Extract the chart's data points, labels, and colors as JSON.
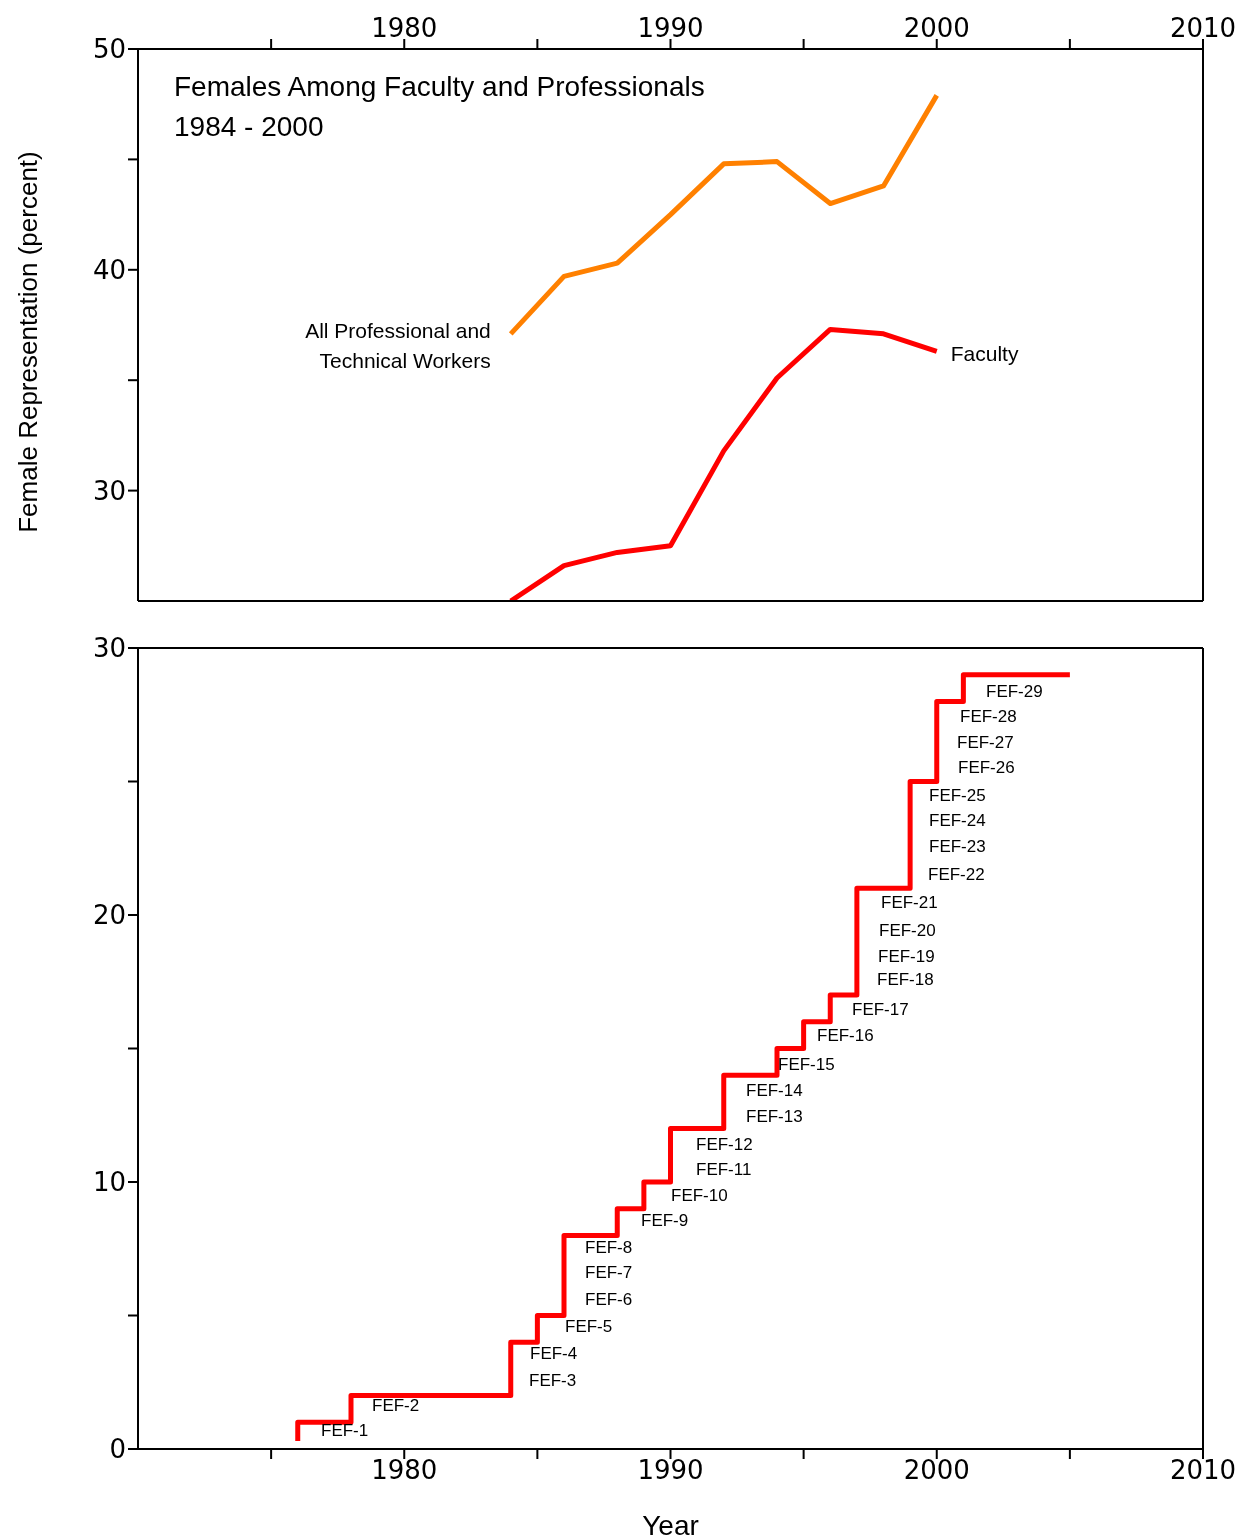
{
  "chart_data": [
    {
      "type": "line",
      "title": "Females Among Faculty and Professionals",
      "subtitle": "1984 - 2000",
      "ylabel": "Female Representation (percent)",
      "xlim": [
        1970,
        2010
      ],
      "xticks": [
        {
          "value": 1975,
          "label": null
        },
        1980,
        {
          "value": 1985,
          "label": null
        },
        1990,
        {
          "value": 1995,
          "label": null
        },
        2000,
        {
          "value": 2005,
          "label": null
        },
        2010
      ],
      "ylim": [
        25,
        50
      ],
      "yticks": [
        30,
        {
          "value": 35,
          "label": null
        },
        40,
        {
          "value": 45,
          "label": null
        },
        50
      ],
      "series": [
        {
          "name": "All Professional and Technical Workers",
          "color": "#ff8000",
          "x": [
            1984,
            1986,
            1988,
            1990,
            1992,
            1994,
            1996,
            1998,
            2000
          ],
          "values": [
            37.1,
            39.7,
            40.3,
            42.5,
            44.8,
            44.9,
            43.0,
            43.8,
            47.9
          ]
        },
        {
          "name": "Faculty",
          "color": "#ff0000",
          "x": [
            1984,
            1986,
            1988,
            1990,
            1992,
            1994,
            1996,
            1998,
            2000
          ],
          "values": [
            25.0,
            26.6,
            27.2,
            27.5,
            31.8,
            35.1,
            37.3,
            37.1,
            36.3
          ]
        }
      ]
    },
    {
      "type": "step",
      "xlabel": "Year",
      "xlim": [
        1970,
        2010
      ],
      "xticks": [
        {
          "value": 1975,
          "label": null
        },
        1980,
        {
          "value": 1985,
          "label": null
        },
        1990,
        {
          "value": 1995,
          "label": null
        },
        2000,
        {
          "value": 2005,
          "label": null
        },
        2010
      ],
      "ylim": [
        0,
        30
      ],
      "yticks": [
        0,
        {
          "value": 5,
          "label": null
        },
        10,
        {
          "value": 15,
          "label": null
        },
        20,
        {
          "value": 25,
          "label": null
        },
        30
      ],
      "series": [
        {
          "color": "#ff0000",
          "x": [
            1976,
            1976,
            1978,
            1984,
            1985,
            1986,
            1988,
            1989,
            1990,
            1992,
            1994,
            1995,
            1996,
            1997,
            1999,
            2000,
            2001,
            2005
          ],
          "values": [
            0.3,
            1,
            2,
            4,
            5,
            8,
            9,
            10,
            12,
            14,
            15,
            16,
            17,
            21,
            25,
            28,
            29,
            29
          ]
        }
      ],
      "annotations": [
        "FEF-1",
        "FEF-2",
        "FEF-3",
        "FEF-4",
        "FEF-5",
        "FEF-6",
        "FEF-7",
        "FEF-8",
        "FEF-9",
        "FEF-10",
        "FEF-11",
        "FEF-12",
        "FEF-13",
        "FEF-14",
        "FEF-15",
        "FEF-16",
        "FEF-17",
        "FEF-18",
        "FEF-19",
        "FEF-20",
        "FEF-21",
        "FEF-22",
        "FEF-23",
        "FEF-24",
        "FEF-25",
        "FEF-26",
        "FEF-27",
        "FEF-28",
        "FEF-29"
      ]
    }
  ]
}
